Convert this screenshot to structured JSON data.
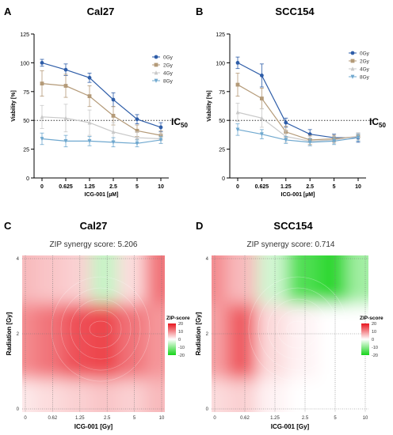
{
  "colors": {
    "0Gy": "#2e5da8",
    "2Gy": "#b49a78",
    "4Gy": "#c9c9c9",
    "8Gy": "#6fa8cf",
    "synergy_high": "#e8161f",
    "synergy_low": "#16d41a"
  },
  "panels": {
    "A": {
      "letter": "A",
      "title": "Cal27"
    },
    "B": {
      "letter": "B",
      "title": "SCC154"
    },
    "C": {
      "letter": "C",
      "title": "Cal27",
      "subtitle": "ZIP synergy score: 5.206"
    },
    "D": {
      "letter": "D",
      "title": "SCC154",
      "subtitle": "ZIP synergy score: 0.714"
    }
  },
  "ic50_label": "IC",
  "ic50_sub": "50",
  "chart_data": [
    {
      "panel": "A",
      "type": "line",
      "title": "Cal27",
      "xlabel": "ICG-001 [µM]",
      "ylabel": "Viability [%]",
      "categories": [
        "0",
        "0.625",
        "1.25",
        "2.5",
        "5",
        "10"
      ],
      "yticks": [
        "0",
        "25",
        "50",
        "75",
        "100",
        "125"
      ],
      "ylim": [
        0,
        125
      ],
      "reference_line": 50,
      "legend_position": "right",
      "series": [
        {
          "name": "0Gy",
          "values": [
            100,
            94,
            87,
            68,
            51,
            44
          ],
          "errors": [
            3,
            5,
            4,
            6,
            4,
            4
          ]
        },
        {
          "name": "2Gy",
          "values": [
            82,
            80,
            71,
            54,
            41,
            37
          ],
          "errors": [
            11,
            10,
            9,
            8,
            5,
            4
          ]
        },
        {
          "name": "4Gy",
          "values": [
            53,
            52,
            48,
            40,
            35,
            34
          ],
          "errors": [
            10,
            12,
            11,
            8,
            5,
            4
          ]
        },
        {
          "name": "8Gy",
          "values": [
            34,
            32,
            32,
            31,
            30,
            33
          ],
          "errors": [
            5,
            5,
            4,
            4,
            3,
            3
          ]
        }
      ]
    },
    {
      "panel": "B",
      "type": "line",
      "title": "SCC154",
      "xlabel": "ICG-001 [µM]",
      "ylabel": "Viability [%]",
      "categories": [
        "0",
        "0.625",
        "1.25",
        "2.5",
        "5",
        "10"
      ],
      "yticks": [
        "0",
        "25",
        "50",
        "75",
        "100",
        "125"
      ],
      "ylim": [
        0,
        125
      ],
      "reference_line": 50,
      "legend_position": "right",
      "series": [
        {
          "name": "0Gy",
          "values": [
            100,
            89,
            48,
            38,
            35,
            35
          ],
          "errors": [
            5,
            10,
            4,
            4,
            3,
            4
          ]
        },
        {
          "name": "2Gy",
          "values": [
            81,
            69,
            40,
            33,
            34,
            36
          ],
          "errors": [
            10,
            9,
            5,
            4,
            3,
            3
          ]
        },
        {
          "name": "4Gy",
          "values": [
            57,
            52,
            36,
            32,
            33,
            36
          ],
          "errors": [
            8,
            8,
            5,
            4,
            3,
            3
          ]
        },
        {
          "name": "8Gy",
          "values": [
            42,
            38,
            33,
            31,
            32,
            35
          ],
          "errors": [
            5,
            4,
            3,
            3,
            3,
            3
          ]
        }
      ]
    },
    {
      "panel": "C",
      "type": "heatmap",
      "title": "Cal27",
      "subtitle": "ZIP synergy score: 5.206",
      "xlabel": "ICG-001 [Gy]",
      "ylabel": "Radiation [Gy]",
      "xticks": [
        "0",
        "0.62",
        "1.25",
        "2.5",
        "5",
        "10"
      ],
      "yticks": [
        "0",
        "2",
        "4"
      ],
      "colorbar": {
        "label": "ZIP-score",
        "ticks": [
          "20",
          "10",
          "0",
          "-10",
          "-20"
        ],
        "range": [
          -20,
          20
        ]
      },
      "grid": true,
      "z": [
        [
          2,
          3,
          4,
          5,
          4,
          6
        ],
        [
          10,
          12,
          15,
          16,
          12,
          9
        ],
        [
          6,
          5,
          4,
          -5,
          3,
          12
        ]
      ]
    },
    {
      "panel": "D",
      "type": "heatmap",
      "title": "SCC154",
      "subtitle": "ZIP synergy score: 0.714",
      "xlabel": "ICG-001 [Gy]",
      "ylabel": "Radiation [Gy]",
      "xticks": [
        "0",
        "0.62",
        "1.25",
        "2.5",
        "5",
        "10"
      ],
      "yticks": [
        "0",
        "2",
        "4"
      ],
      "colorbar": {
        "label": "ZIP-score",
        "ticks": [
          "20",
          "10",
          "0",
          "-10",
          "-20"
        ],
        "range": [
          -20,
          20
        ]
      },
      "grid": true,
      "z": [
        [
          3,
          4,
          1,
          0,
          0,
          0
        ],
        [
          8,
          14,
          3,
          1,
          0,
          0
        ],
        [
          10,
          6,
          -4,
          -15,
          -18,
          -8
        ]
      ]
    }
  ]
}
